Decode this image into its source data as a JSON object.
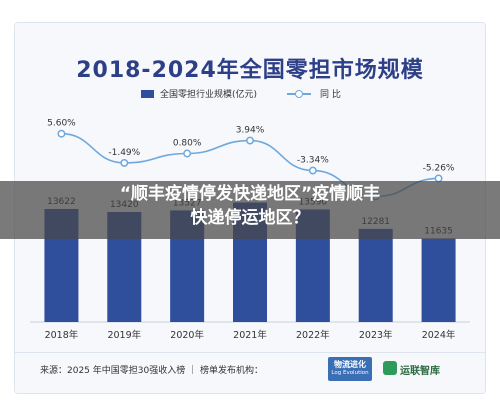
{
  "title": "2018-2024年全国零担市场规模",
  "legend": {
    "bar_label": "全国零担行业规模(亿元)",
    "line_label": "同 比"
  },
  "overlay": {
    "line1": "“顺丰疫情停发快递地区”疫情顺丰",
    "line2": "快递停运地区？"
  },
  "footer": {
    "source": "来源：2025 年中国零担30强收入榜  ｜  榜单发布机构：",
    "logo1_main": "物流进化",
    "logo1_sub": "Log Evolution",
    "logo2": "运联智库"
  },
  "colors": {
    "bar": "#2f4f9d",
    "line": "#6fa8dc",
    "title": "#2d3f87"
  },
  "chart_data": {
    "type": "bar",
    "categories": [
      "2018年",
      "2019年",
      "2020年",
      "2021年",
      "2022年",
      "2023年",
      "2024年"
    ],
    "series": [
      {
        "name": "全国零担行业规模(亿元)",
        "type": "bar",
        "values": [
          13622,
          13420,
          13527,
          14060,
          13590,
          12281,
          11635
        ],
        "labels": [
          "13622",
          "13420",
          "13527",
          "",
          "13590",
          "12281",
          "11635"
        ]
      },
      {
        "name": "同 比",
        "type": "line",
        "values": [
          5.6,
          -1.49,
          0.8,
          3.94,
          -3.34,
          -9.63,
          -5.26
        ],
        "labels": [
          "5.60%",
          "-1.49%",
          "0.80%",
          "3.94%",
          "-3.34%",
          "",
          "-5.26%"
        ]
      }
    ],
    "title": "2018-2024年全国零担市场规模",
    "legend_position": "top-center"
  }
}
